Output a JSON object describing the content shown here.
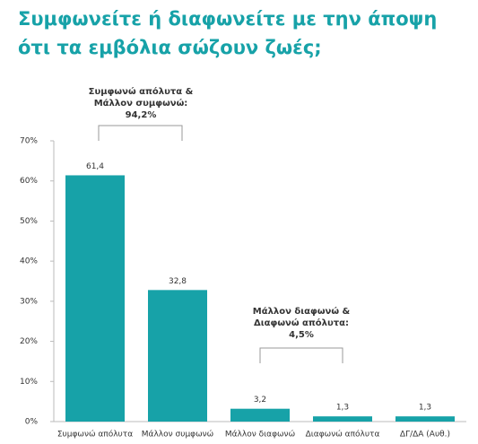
{
  "chart_data": {
    "type": "bar",
    "title": [
      "Συμφωνείτε ή διαφωνείτε με την άποψη",
      "ότι τα εμβόλια σώζουν ζωές;"
    ],
    "categories": [
      "Συμφωνώ απόλυτα",
      "Μάλλον συμφωνώ",
      "Μάλλον διαφωνώ",
      "Διαφωνώ απόλυτα",
      "ΔΓ/ΔΑ (Αυθ.)"
    ],
    "values": [
      61.4,
      32.8,
      3.2,
      1.3,
      1.3
    ],
    "value_labels": [
      "61,4",
      "32,8",
      "3,2",
      "1,3",
      "1,3"
    ],
    "color": "#17a2a8",
    "ylim": [
      0,
      70
    ],
    "yticks": [
      {
        "value": 0,
        "label": "0%"
      },
      {
        "value": 10,
        "label": "10%"
      },
      {
        "value": 20,
        "label": "20%"
      },
      {
        "value": 30,
        "label": "30%"
      },
      {
        "value": 40,
        "label": "40%"
      },
      {
        "value": 50,
        "label": "50%"
      },
      {
        "value": 60,
        "label": "60%"
      },
      {
        "value": 70,
        "label": "70%"
      }
    ],
    "annotations": [
      {
        "text": [
          "Συμφωνώ απόλυτα &",
          "Μάλλον συμφωνώ:"
        ],
        "value": 94.2,
        "value_label": "94,2%"
      },
      {
        "text": [
          "Μάλλον διαφωνώ &",
          "Διαφωνώ απόλυτα:"
        ],
        "value": 4.5,
        "value_label": "4,5%"
      }
    ]
  }
}
